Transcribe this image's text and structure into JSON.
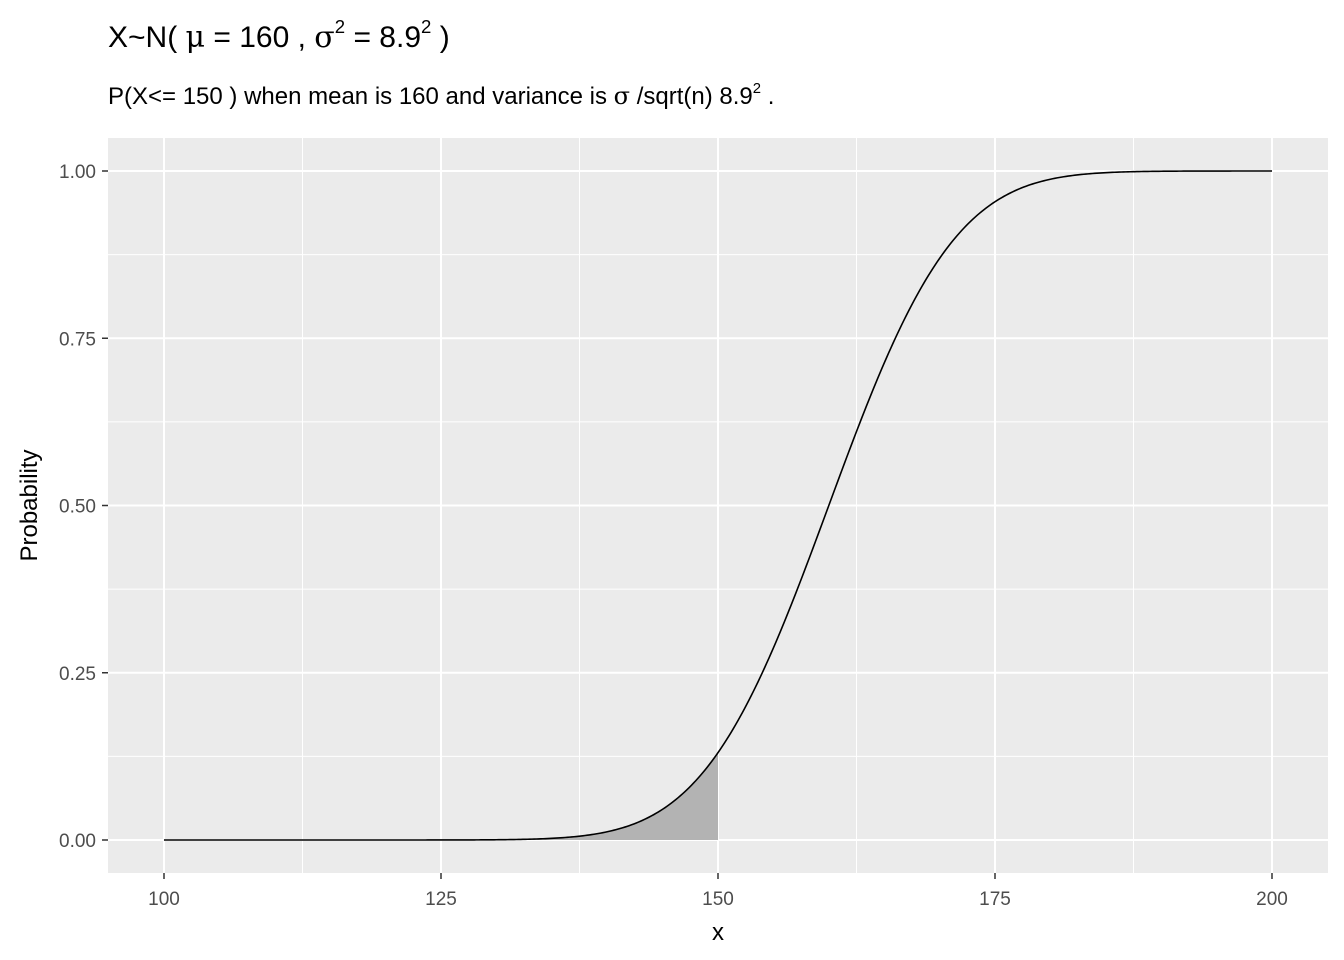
{
  "title": {
    "prefix": "X~N( ",
    "mu": "μ",
    "eq1": " = 160 , ",
    "sigma": "σ",
    "sq1": "2",
    "eq2": " = 8.9",
    "sq2": "2",
    "suffix": " )"
  },
  "subtitle": {
    "text1": "P(X<= 150 ) when mean is 160  and variance is ",
    "sigma": "σ",
    "text2": " /sqrt(n) 8.9",
    "sq": "2",
    "text3": " ."
  },
  "chart_data": {
    "type": "area",
    "distribution": "normal",
    "mean": 160,
    "sd": 8.9,
    "xlabel": "x",
    "ylabel": "Probability",
    "xlim": [
      100,
      200
    ],
    "ylim": [
      0,
      1
    ],
    "x_ticks": [
      100,
      125,
      150,
      175,
      200
    ],
    "x_tick_labels": [
      "100",
      "125",
      "150",
      "175",
      "200"
    ],
    "y_ticks": [
      0,
      0.25,
      0.5,
      0.75,
      1
    ],
    "y_tick_labels": [
      "0.00",
      "0.25",
      "0.50",
      "0.75",
      "1.00"
    ],
    "series": [
      {
        "type": "line",
        "x": [
          100,
          130,
          135,
          140,
          145,
          150,
          155,
          160,
          165,
          170,
          175,
          180,
          185,
          190,
          200
        ],
        "y": [
          0,
          0.0004,
          0.0025,
          0.0122,
          0.046,
          0.1306,
          0.2871,
          0.5,
          0.7129,
          0.8694,
          0.954,
          0.9878,
          0.9975,
          0.9996,
          1.0
        ]
      },
      {
        "type": "shaded-area",
        "x_from": 100,
        "x_to": 150,
        "area": 0.1306,
        "color": "#b3b3b3"
      }
    ],
    "panel_background": "#ebebeb",
    "grid_color": "#ffffff",
    "line_color": "#000000",
    "grid": true
  }
}
